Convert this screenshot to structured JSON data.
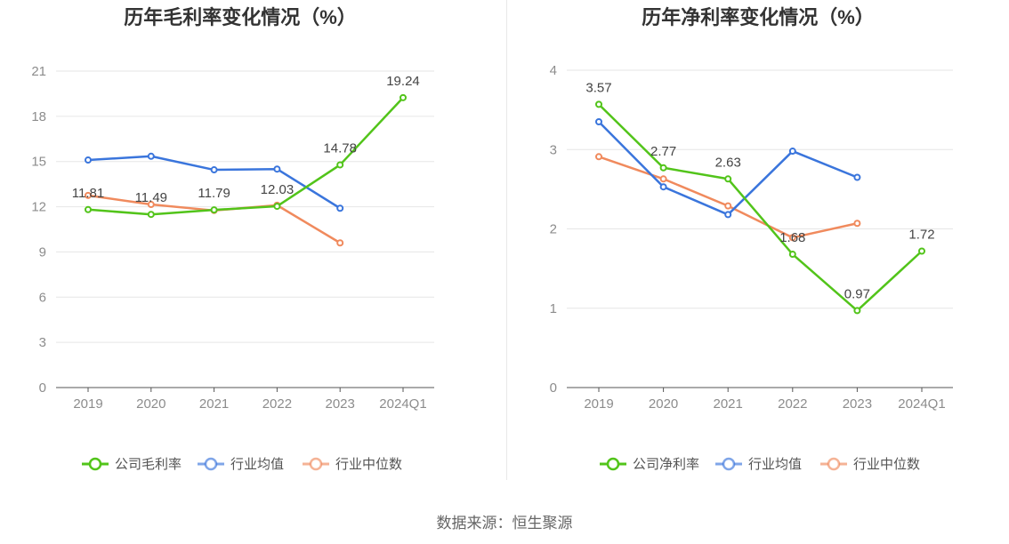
{
  "source_text": "数据来源：恒生聚源",
  "colors": {
    "company": "#52c41a",
    "avg": "#3a75dc",
    "median": "#f08a5d",
    "grid": "#e6e6e6",
    "axis": "#555555",
    "tick": "#8c8c8c"
  },
  "chart_data": [
    {
      "type": "line",
      "title": "历年毛利率变化情况（%）",
      "categories": [
        "2019",
        "2020",
        "2021",
        "2022",
        "2023",
        "2024Q1"
      ],
      "ylim": [
        0,
        21
      ],
      "yticks": [
        0,
        3,
        6,
        9,
        12,
        15,
        18,
        21
      ],
      "grid": true,
      "legend_position": "bottom",
      "series": [
        {
          "name": "公司毛利率",
          "key": "company",
          "values": [
            11.81,
            11.49,
            11.79,
            12.03,
            14.78,
            19.24
          ],
          "labels": [
            "11.81",
            "11.49",
            "11.79",
            "12.03",
            "14.78",
            "19.24"
          ]
        },
        {
          "name": "行业均值",
          "key": "avg",
          "values": [
            15.1,
            15.35,
            14.45,
            14.5,
            11.9,
            null
          ]
        },
        {
          "name": "行业中位数",
          "key": "median",
          "values": [
            12.75,
            12.15,
            11.75,
            12.1,
            9.6,
            null
          ]
        }
      ]
    },
    {
      "type": "line",
      "title": "历年净利率变化情况（%）",
      "categories": [
        "2019",
        "2020",
        "2021",
        "2022",
        "2023",
        "2024Q1"
      ],
      "ylim": [
        0,
        4
      ],
      "yticks": [
        0,
        1,
        2,
        3,
        4
      ],
      "grid": true,
      "legend_position": "bottom",
      "series": [
        {
          "name": "公司净利率",
          "key": "company",
          "values": [
            3.57,
            2.77,
            2.63,
            1.68,
            0.97,
            1.72
          ],
          "labels": [
            "3.57",
            "2.77",
            "2.63",
            "1.68",
            "0.97",
            "1.72"
          ]
        },
        {
          "name": "行业均值",
          "key": "avg",
          "values": [
            3.35,
            2.53,
            2.18,
            2.98,
            2.65,
            null
          ]
        },
        {
          "name": "行业中位数",
          "key": "median",
          "values": [
            2.91,
            2.63,
            2.29,
            1.89,
            2.07,
            null
          ]
        }
      ]
    }
  ]
}
